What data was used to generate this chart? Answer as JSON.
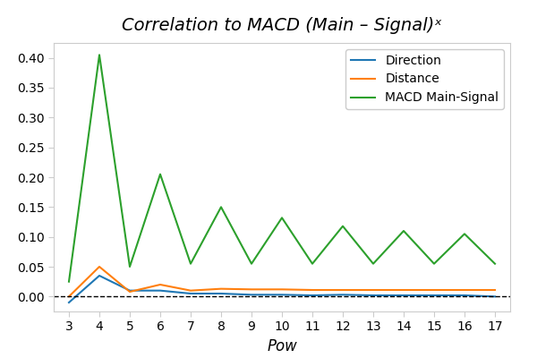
{
  "title": "Correlation to MACD (Main – Signal)ˣ",
  "xlabel": "Pow",
  "x": [
    3,
    4,
    5,
    6,
    7,
    8,
    9,
    10,
    11,
    12,
    13,
    14,
    15,
    16,
    17
  ],
  "direction": [
    -0.01,
    0.035,
    0.01,
    0.01,
    0.005,
    0.005,
    0.003,
    0.003,
    0.002,
    0.003,
    0.002,
    0.002,
    0.002,
    0.002,
    0.0
  ],
  "distance": [
    0.0,
    0.05,
    0.008,
    0.02,
    0.01,
    0.013,
    0.012,
    0.012,
    0.011,
    0.011,
    0.011,
    0.011,
    0.011,
    0.011,
    0.011
  ],
  "macd": [
    0.025,
    0.405,
    0.05,
    0.205,
    0.055,
    0.15,
    0.055,
    0.132,
    0.055,
    0.118,
    0.055,
    0.11,
    0.055,
    0.105,
    0.055
  ],
  "direction_color": "#1f77b4",
  "distance_color": "#ff7f0e",
  "macd_color": "#2ca02c",
  "hline_color": "black",
  "hline_style": "--",
  "ylim": [
    -0.025,
    0.425
  ],
  "xlim": [
    2.5,
    17.5
  ],
  "legend_labels": [
    "Direction",
    "Distance",
    "MACD Main-Signal"
  ],
  "title_fontsize": 14,
  "xlabel_fontsize": 12,
  "tick_fontsize": 10,
  "background_color": "#ffffff",
  "figsize": [
    6.0,
    4.0
  ],
  "dpi": 100
}
